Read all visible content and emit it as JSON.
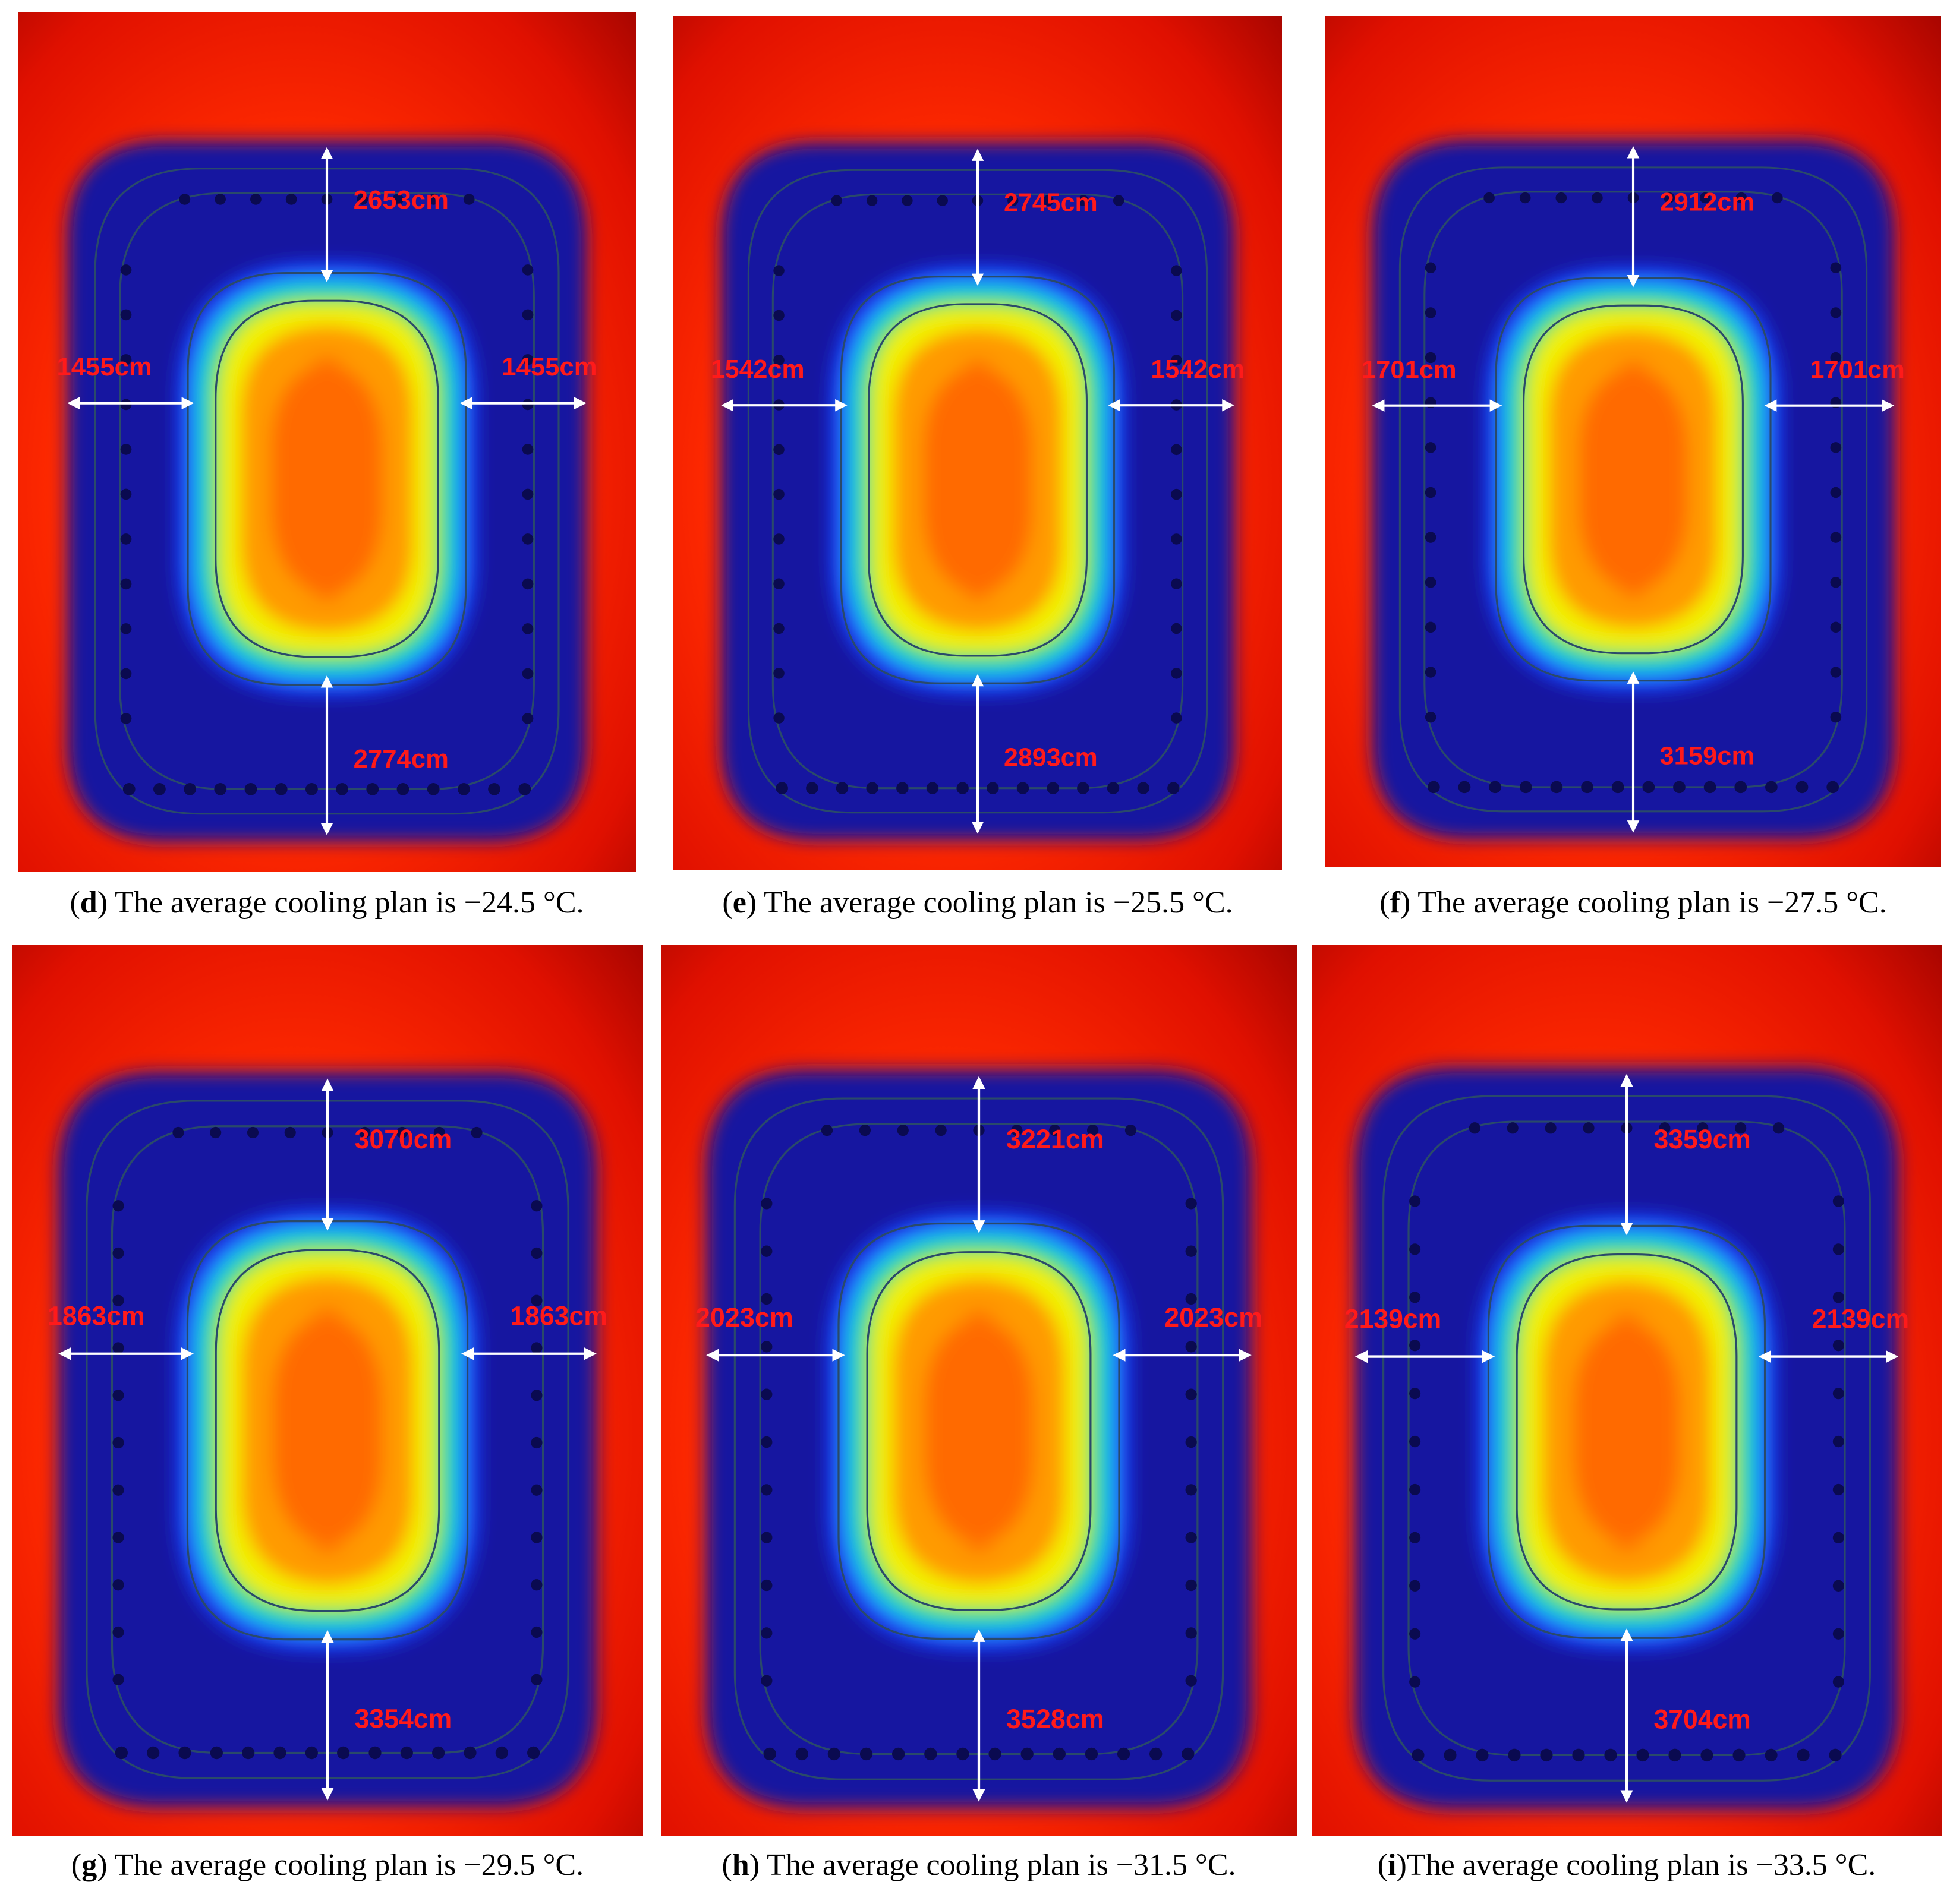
{
  "figure": {
    "panels": [
      {
        "letter": "d",
        "caption_prefix": ") The average cooling plan is ",
        "temperature": "−24.5 °C.",
        "open": "(",
        "top": "2653cm",
        "left": "1455cm",
        "right": "1455cm",
        "bottom": "2774cm"
      },
      {
        "letter": "e",
        "caption_prefix": ") The average cooling plan is ",
        "temperature": "−25.5 °C.",
        "open": "(",
        "top": "2745cm",
        "left": "1542cm",
        "right": "1542cm",
        "bottom": "2893cm"
      },
      {
        "letter": "f",
        "caption_prefix": ") The average cooling plan is ",
        "temperature": "−27.5 °C.",
        "open": "(",
        "top": "2912cm",
        "left": "1701cm",
        "right": "1701cm",
        "bottom": "3159cm"
      },
      {
        "letter": "g",
        "caption_prefix": ") The average cooling plan is ",
        "temperature": "−29.5 °C.",
        "open": "(",
        "top": "3070cm",
        "left": "1863cm",
        "right": "1863cm",
        "bottom": "3354cm"
      },
      {
        "letter": "h",
        "caption_prefix": ") The average cooling plan is ",
        "temperature": "−31.5 °C.",
        "open": "(",
        "top": "3221cm",
        "left": "2023cm",
        "right": "2023cm",
        "bottom": "3528cm"
      },
      {
        "letter": "i",
        "caption_prefix": ")The average cooling plan is ",
        "temperature": "−33.5 °C.",
        "open": "(",
        "top": "3359cm",
        "left": "2139cm",
        "right": "2139cm",
        "bottom": "3704cm"
      }
    ],
    "colors": {
      "background_hot": "#8b0000",
      "field_red": "#ff2a00",
      "field_orange": "#ff6a00",
      "field_yellow": "#f2f000",
      "field_green": "#35e060",
      "field_cyan": "#19c8e8",
      "field_blue": "#1a3cff",
      "field_deep_blue": "#1414a0",
      "contour": "#2a4a6a",
      "arrow": "#ffffff",
      "label": "#ff1a1a"
    }
  }
}
